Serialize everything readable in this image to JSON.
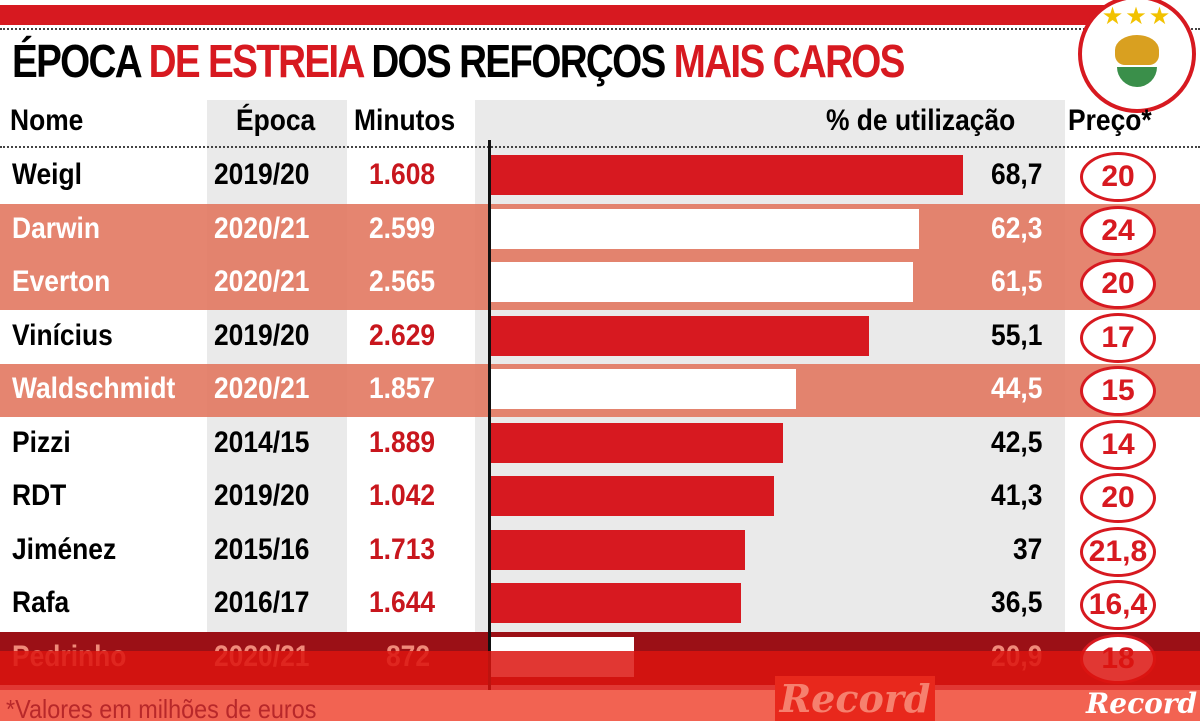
{
  "title": {
    "part1": "ÉPOCA ",
    "part2": "DE ESTREIA",
    "part3": " DOS REFORÇOS ",
    "part4": "MAIS CAROS"
  },
  "headers": {
    "name": "Nome",
    "season": "Época",
    "minutes": "Minutos",
    "pct": "% de utilização",
    "price": "Preço*"
  },
  "chart_data": {
    "type": "bar",
    "title": "ÉPOCA DE ESTREIA DOS REFORÇOS MAIS CAROS",
    "xlabel": "% de utilização",
    "xlim": [
      0,
      100
    ],
    "categories": [
      "Weigl",
      "Darwin",
      "Everton",
      "Vinícius",
      "Waldschmidt",
      "Pizzi",
      "RDT",
      "Jiménez",
      "Rafa",
      "Pedrinho"
    ],
    "rows": [
      {
        "name": "Weigl",
        "season": "2019/20",
        "minutes": "1.608",
        "pct": 68.7,
        "pct_label": "68,7",
        "price": "20",
        "highlight": false
      },
      {
        "name": "Darwin",
        "season": "2020/21",
        "minutes": "2.599",
        "pct": 62.3,
        "pct_label": "62,3",
        "price": "24",
        "highlight": true
      },
      {
        "name": "Everton",
        "season": "2020/21",
        "minutes": "2.565",
        "pct": 61.5,
        "pct_label": "61,5",
        "price": "20",
        "highlight": true
      },
      {
        "name": "Vinícius",
        "season": "2019/20",
        "minutes": "2.629",
        "pct": 55.1,
        "pct_label": "55,1",
        "price": "17",
        "highlight": false
      },
      {
        "name": "Waldschmidt",
        "season": "2020/21",
        "minutes": "1.857",
        "pct": 44.5,
        "pct_label": "44,5",
        "price": "15",
        "highlight": true
      },
      {
        "name": "Pizzi",
        "season": "2014/15",
        "minutes": "1.889",
        "pct": 42.5,
        "pct_label": "42,5",
        "price": "14",
        "highlight": false
      },
      {
        "name": "RDT",
        "season": "2019/20",
        "minutes": "1.042",
        "pct": 41.3,
        "pct_label": "41,3",
        "price": "20",
        "highlight": false
      },
      {
        "name": "Jiménez",
        "season": "2015/16",
        "minutes": "1.713",
        "pct": 37,
        "pct_label": "37",
        "price": "21,8",
        "highlight": false
      },
      {
        "name": "Rafa",
        "season": "2016/17",
        "minutes": "1.644",
        "pct": 36.5,
        "pct_label": "36,5",
        "price": "16,4",
        "highlight": false
      },
      {
        "name": "Pedrinho",
        "season": "2020/21",
        "minutes": "872",
        "pct": 20.9,
        "pct_label": "20,9",
        "price": "18",
        "highlight": false
      }
    ]
  },
  "footnote": "*Valores em milhões de euros",
  "watermark": "Record",
  "logo": "Record",
  "colors": {
    "accent": "#d71920",
    "highlight": "#e27860"
  }
}
